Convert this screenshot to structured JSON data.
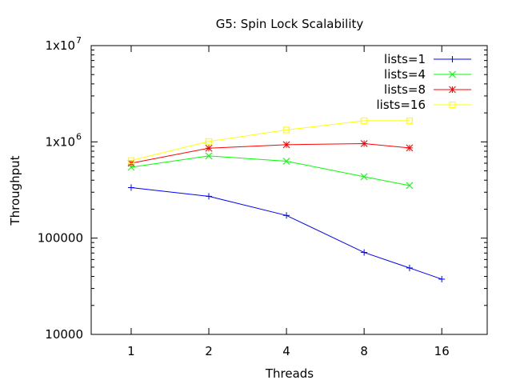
{
  "chart_data": {
    "type": "line",
    "title": "G5: Spin Lock Scalability",
    "xlabel": "Threads",
    "ylabel": "Throughput",
    "x_scale": "log2",
    "y_scale": "log10",
    "xlim": [
      0.7,
      24
    ],
    "ylim": [
      10000,
      10000000
    ],
    "x_ticks": [
      {
        "value": 1,
        "label": "1"
      },
      {
        "value": 2,
        "label": "2"
      },
      {
        "value": 4,
        "label": "4"
      },
      {
        "value": 8,
        "label": "8"
      },
      {
        "value": 16,
        "label": "16"
      }
    ],
    "y_ticks": [
      {
        "value": 10000,
        "label": "10000",
        "base": "",
        "exp": ""
      },
      {
        "value": 100000,
        "label": "100000",
        "base": "",
        "exp": ""
      },
      {
        "value": 1000000,
        "label": "",
        "base": "1x10",
        "exp": "6"
      },
      {
        "value": 10000000,
        "label": "",
        "base": "1x10",
        "exp": "7"
      }
    ],
    "legend_position": "top-right",
    "series": [
      {
        "name": "lists=1",
        "color": "#0000ff",
        "marker": "plus",
        "x": [
          1,
          2,
          4,
          8,
          12,
          16
        ],
        "y": [
          335000,
          272000,
          172000,
          71000,
          49000,
          37500
        ]
      },
      {
        "name": "lists=4",
        "color": "#00ff00",
        "marker": "cross",
        "x": [
          1,
          2,
          4,
          8,
          12
        ],
        "y": [
          545000,
          715000,
          630000,
          435000,
          352000
        ]
      },
      {
        "name": "lists=8",
        "color": "#ff0000",
        "marker": "star",
        "x": [
          1,
          2,
          4,
          8,
          12
        ],
        "y": [
          600000,
          860000,
          935000,
          960000,
          865000
        ]
      },
      {
        "name": "lists=16",
        "color": "#ffff00",
        "marker": "square",
        "x": [
          1,
          2,
          4,
          8,
          12
        ],
        "y": [
          640000,
          1010000,
          1330000,
          1660000,
          1660000
        ]
      }
    ]
  }
}
